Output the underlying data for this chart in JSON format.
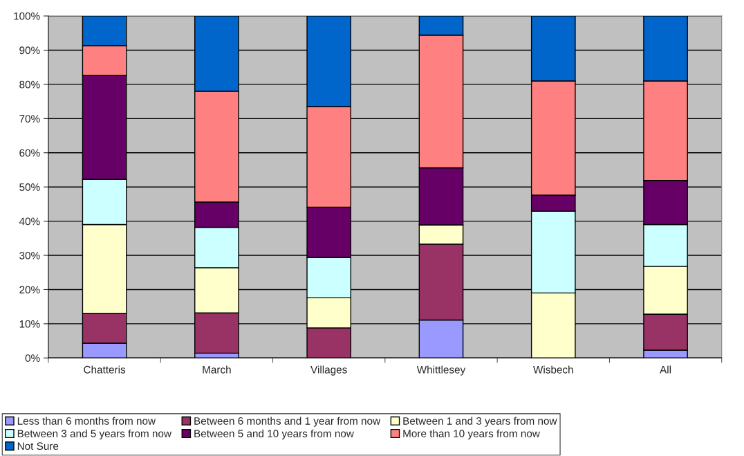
{
  "chart_data": {
    "type": "bar",
    "stacked": true,
    "categories": [
      "Chatteris",
      "March",
      "Villages",
      "Whittlesey",
      "Wisbech",
      "All"
    ],
    "series": [
      {
        "name": "Less than 6 months from now",
        "color": "#9999ff",
        "values": [
          4.3,
          1.4,
          0,
          11.1,
          0,
          2.3
        ]
      },
      {
        "name": "Between 6 months and 1 year from now",
        "color": "#993366",
        "values": [
          8.7,
          11.8,
          8.8,
          22.2,
          0,
          10.5
        ]
      },
      {
        "name": "Between 1 and 3 years from now",
        "color": "#ffffcc",
        "values": [
          26,
          13.2,
          8.8,
          5.6,
          19,
          14
        ]
      },
      {
        "name": "Between 3 and 5 years from now",
        "color": "#ccffff",
        "values": [
          13.2,
          11.8,
          11.8,
          0,
          23.9,
          12.2
        ]
      },
      {
        "name": "Between 5 and 10 years from now",
        "color": "#660066",
        "values": [
          30.4,
          7.4,
          14.7,
          16.7,
          4.7,
          12.9
        ]
      },
      {
        "name": "More than 10 years from now",
        "color": "#ff8080",
        "values": [
          8.7,
          32.4,
          29.4,
          38.8,
          33.4,
          29.1
        ]
      },
      {
        "name": "Not Sure",
        "color": "#0066cc",
        "values": [
          8.7,
          22,
          26.5,
          5.6,
          19,
          19
        ]
      }
    ],
    "ylim": [
      0,
      100
    ],
    "yticks": [
      {
        "value": 0,
        "label": "0%"
      },
      {
        "value": 10,
        "label": "10%"
      },
      {
        "value": 20,
        "label": "20%"
      },
      {
        "value": 30,
        "label": "30%"
      },
      {
        "value": 40,
        "label": "40%"
      },
      {
        "value": 50,
        "label": "50%"
      },
      {
        "value": 60,
        "label": "60%"
      },
      {
        "value": 70,
        "label": "70%"
      },
      {
        "value": 80,
        "label": "80%"
      },
      {
        "value": 90,
        "label": "90%"
      },
      {
        "value": 100,
        "label": "100%"
      }
    ],
    "grid": "y",
    "legend": "bottom"
  }
}
